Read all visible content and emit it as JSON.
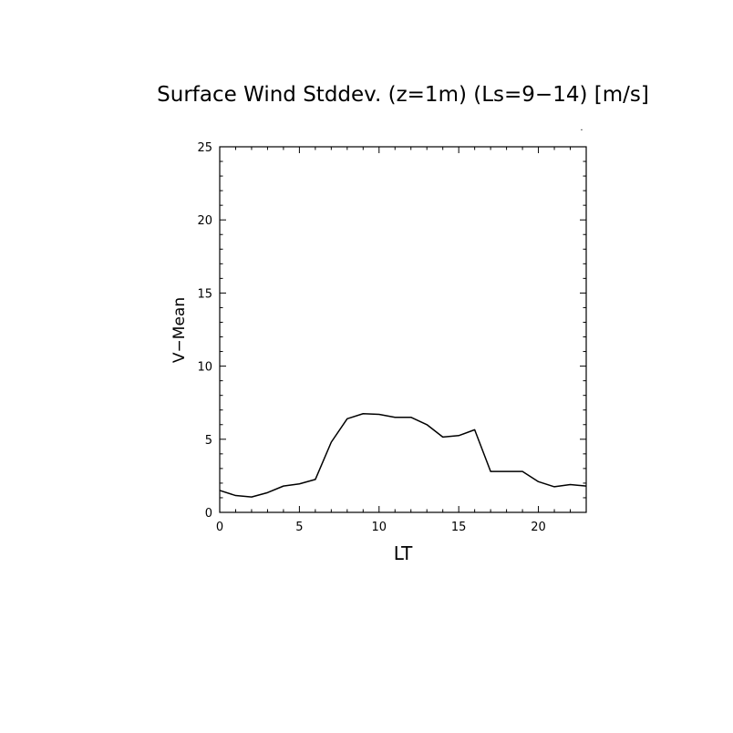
{
  "chart_data": {
    "type": "line",
    "title": "Surface Wind Stddev. (z=1m) (Ls=9−14) [m/s]",
    "xlabel": "LT",
    "ylabel": "V−Mean",
    "xlim": [
      0,
      23
    ],
    "ylim": [
      0,
      25
    ],
    "xticks": [
      0,
      5,
      10,
      15,
      20
    ],
    "yticks": [
      0,
      5,
      10,
      15,
      20,
      25
    ],
    "grid": false,
    "series": [
      {
        "color": "#000000",
        "x": [
          0,
          1,
          2,
          3,
          4,
          5,
          6,
          7,
          8,
          9,
          10,
          11,
          12,
          13,
          14,
          15,
          16,
          17,
          18,
          19,
          20,
          21,
          22,
          23
        ],
        "values": [
          1.5,
          1.15,
          1.05,
          1.35,
          1.8,
          1.95,
          2.25,
          4.8,
          6.4,
          6.75,
          6.7,
          6.5,
          6.5,
          6.0,
          5.15,
          5.25,
          5.65,
          2.8,
          2.8,
          2.8,
          2.1,
          1.75,
          1.9,
          1.8
        ]
      }
    ]
  }
}
